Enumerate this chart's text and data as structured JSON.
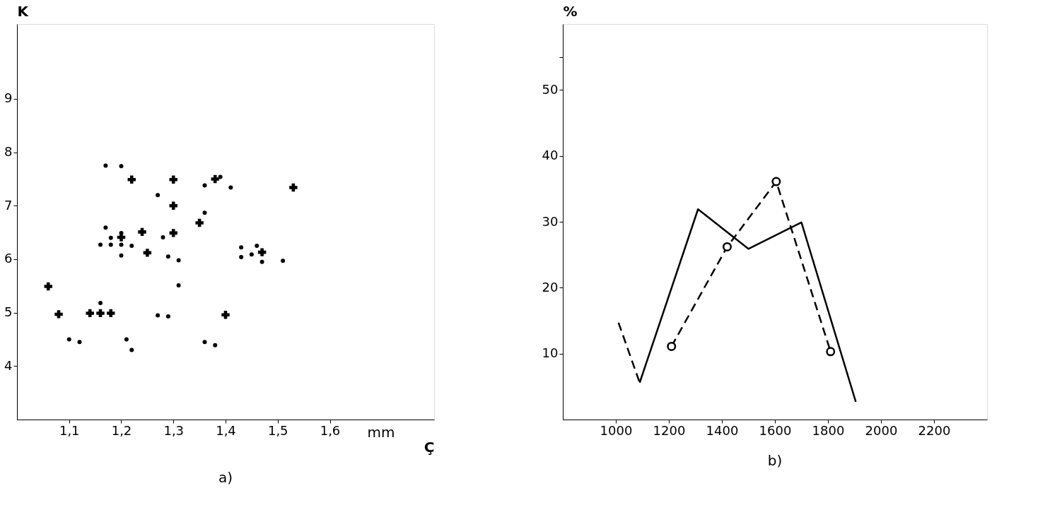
{
  "chart_data": [
    {
      "type": "scatter",
      "title": "a)",
      "xlabel": "Ç",
      "ylabel": "K",
      "annotations": [
        "mm"
      ],
      "xlim": [
        1.0,
        1.8
      ],
      "xticks": [
        {
          "value": 1.1,
          "label": "1,1"
        },
        {
          "value": 1.2,
          "label": "1,2"
        },
        {
          "value": 1.3,
          "label": "1,3"
        },
        {
          "value": 1.4,
          "label": "1,4"
        },
        {
          "value": 1.5,
          "label": "1,5"
        },
        {
          "value": 1.6,
          "label": "1,6"
        }
      ],
      "ylim": [
        3,
        10.4
      ],
      "yticks": [
        4,
        5,
        6,
        7,
        8,
        9
      ],
      "grid": false,
      "series": [
        {
          "color": "#000000",
          "marker": "cross",
          "x": [
            1.06,
            1.08,
            1.14,
            1.16,
            1.18,
            1.22,
            1.3,
            1.3,
            1.2,
            1.24,
            1.25,
            1.3,
            1.35,
            1.38,
            1.53,
            1.47,
            1.4
          ],
          "values": [
            5.49,
            4.97,
            4.99,
            4.99,
            4.99,
            7.49,
            7.49,
            7.0,
            6.41,
            6.51,
            6.12,
            6.49,
            6.68,
            7.5,
            7.34,
            6.13,
            4.96
          ]
        },
        {
          "color": "#000000",
          "marker": "circle",
          "x": [
            1.17,
            1.2,
            1.27,
            1.36,
            1.39,
            1.41,
            1.36,
            1.17,
            1.16,
            1.18,
            1.18,
            1.2,
            1.2,
            1.22,
            1.2,
            1.28,
            1.29,
            1.31,
            1.31,
            1.43,
            1.46,
            1.43,
            1.45,
            1.47,
            1.51,
            1.16,
            1.27,
            1.29,
            1.1,
            1.12,
            1.21,
            1.22,
            1.36,
            1.38
          ],
          "values": [
            7.75,
            7.74,
            7.2,
            7.38,
            7.54,
            7.34,
            6.87,
            6.59,
            6.27,
            6.27,
            6.4,
            6.49,
            6.27,
            6.25,
            6.07,
            6.41,
            6.05,
            5.98,
            5.51,
            6.22,
            6.25,
            6.04,
            6.09,
            5.95,
            5.97,
            5.18,
            4.95,
            4.93,
            4.5,
            4.45,
            4.5,
            4.3,
            4.45,
            4.39
          ]
        }
      ]
    },
    {
      "type": "line",
      "title": "b)",
      "ylabel": "%",
      "xlim": [
        800,
        2400
      ],
      "xticks": [
        1000,
        1200,
        1400,
        1600,
        1800,
        2000,
        2200
      ],
      "ylim": [
        0,
        60
      ],
      "yticks": [
        10,
        20,
        30,
        40,
        50,
        {
          "value": 55,
          "label": null
        }
      ],
      "grid": false,
      "series": [
        {
          "color": "#000000",
          "line_style": "solid",
          "marker": "none",
          "x": [
            1090,
            1310,
            1500,
            1700,
            1905
          ],
          "values": [
            5.6,
            31.9,
            25.9,
            29.9,
            2.7
          ]
        },
        {
          "color": "#000000",
          "line_style": "dashed",
          "marker": "none",
          "x": [
            1010,
            1090
          ],
          "values": [
            14.7,
            5.6
          ]
        },
        {
          "color": "#000000",
          "line_style": "dashed",
          "marker": "circle",
          "x": [
            1210,
            1420,
            1605,
            1810
          ],
          "values": [
            11.1,
            26.2,
            36.1,
            10.3
          ]
        }
      ]
    }
  ]
}
